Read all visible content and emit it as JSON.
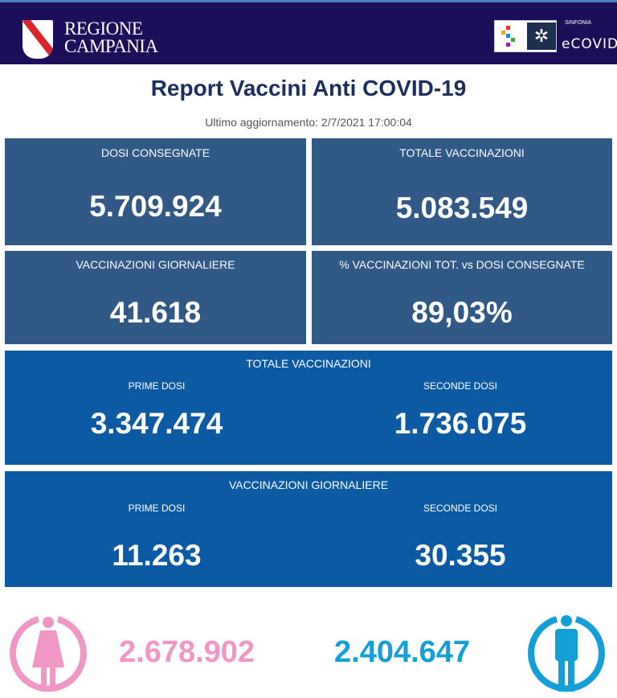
{
  "header": {
    "brand_line1": "REGIONE",
    "brand_line2": "CAMPANIA",
    "partner_small": "SINFONIA",
    "partner_name": "eCOVID"
  },
  "title": "Report Vaccini Anti COVID-19",
  "last_update": "Ultimo aggiornamento: 2/7/2021  17:00:04",
  "cards": [
    {
      "label": "DOSI  CONSEGNATE",
      "value": "5.709.924"
    },
    {
      "label": "TOTALE VACCINAZIONI",
      "value": "5.083.549"
    },
    {
      "label": "VACCINAZIONI GIORNALIERE",
      "value": "41.618"
    },
    {
      "label": "% VACCINAZIONI TOT. vs DOSI CONSEGNATE",
      "value": "89,03%"
    }
  ],
  "totale": {
    "label": "TOTALE VACCINAZIONI",
    "first_label": "PRIME DOSI",
    "first_value": "3.347.474",
    "second_label": "SECONDE DOSI",
    "second_value": "1.736.075"
  },
  "giornaliere": {
    "label": "VACCINAZIONI GIORNALIERE",
    "first_label": "PRIME DOSI",
    "first_value": "11.263",
    "second_label": "SECONDE DOSI",
    "second_value": "30.355"
  },
  "gender": {
    "female_value": "2.678.902",
    "male_value": "2.404.647",
    "female_color": "#f197c6",
    "male_color": "#159fd8"
  },
  "colors": {
    "header": "#1d0e5a",
    "card_top": "#305a85",
    "card_bottom": "#0b5aa3",
    "title": "#1b2f5e"
  }
}
